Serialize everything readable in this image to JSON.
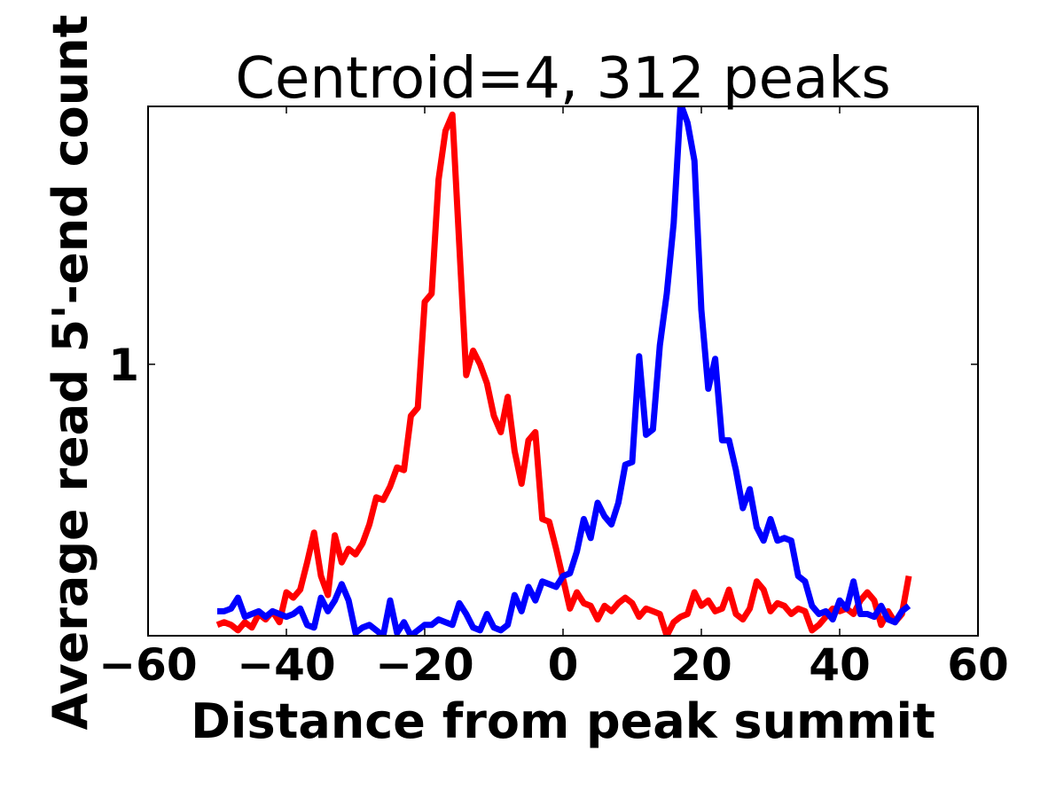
{
  "chart_data": {
    "type": "line",
    "title": "Centroid=4, 312 peaks",
    "xlabel": "Distance from peak summit",
    "ylabel": "Average read 5'-end count",
    "xlim": [
      -60,
      60
    ],
    "xticks": [
      -60,
      -40,
      -20,
      0,
      20,
      40,
      60
    ],
    "xtick_labels": [
      "−60",
      "−40",
      "−20",
      "0",
      "20",
      "40",
      "60"
    ],
    "ylim": [
      0.0,
      1.95
    ],
    "yticks": [
      1
    ],
    "ytick_labels": [
      "1"
    ],
    "grid": false,
    "legend": "none",
    "series": [
      {
        "color": "#ff0000",
        "x": [
          -50,
          -49,
          -48,
          -47,
          -46,
          -45,
          -44,
          -43,
          -42,
          -41,
          -40,
          -39,
          -38,
          -37,
          -36,
          -35,
          -34,
          -33,
          -32,
          -31,
          -30,
          -29,
          -28,
          -27,
          -26,
          -25,
          -24,
          -23,
          -22,
          -21,
          -20,
          -19,
          -18,
          -17,
          -16,
          -15,
          -14,
          -13,
          -12,
          -11,
          -10,
          -9,
          -8,
          -7,
          -6,
          -5,
          -4,
          -3,
          -2,
          -1,
          0,
          1,
          2,
          3,
          4,
          5,
          6,
          7,
          8,
          9,
          10,
          11,
          12,
          13,
          14,
          15,
          16,
          17,
          18,
          19,
          20,
          21,
          22,
          23,
          24,
          25,
          26,
          27,
          28,
          29,
          30,
          31,
          32,
          33,
          34,
          35,
          36,
          37,
          38,
          39,
          40,
          41,
          42,
          43,
          44,
          45,
          46,
          47,
          48,
          49,
          50
        ],
        "y": [
          0.04,
          0.05,
          0.04,
          0.02,
          0.05,
          0.03,
          0.08,
          0.06,
          0.09,
          0.05,
          0.16,
          0.14,
          0.17,
          0.27,
          0.38,
          0.22,
          0.15,
          0.37,
          0.27,
          0.32,
          0.3,
          0.34,
          0.41,
          0.51,
          0.5,
          0.55,
          0.62,
          0.61,
          0.81,
          0.84,
          1.23,
          1.26,
          1.68,
          1.86,
          1.92,
          1.44,
          0.96,
          1.05,
          1.0,
          0.93,
          0.81,
          0.75,
          0.88,
          0.68,
          0.56,
          0.72,
          0.75,
          0.43,
          0.42,
          0.32,
          0.21,
          0.1,
          0.16,
          0.12,
          0.11,
          0.06,
          0.11,
          0.09,
          0.12,
          0.14,
          0.12,
          0.07,
          0.1,
          0.09,
          0.08,
          0.0,
          0.05,
          0.07,
          0.08,
          0.16,
          0.11,
          0.13,
          0.09,
          0.1,
          0.17,
          0.08,
          0.06,
          0.1,
          0.2,
          0.17,
          0.09,
          0.12,
          0.11,
          0.08,
          0.1,
          0.09,
          0.02,
          0.04,
          0.07,
          0.1,
          0.09,
          0.1,
          0.08,
          0.13,
          0.16,
          0.13,
          0.04,
          0.09,
          0.05,
          0.08,
          0.22
        ]
      },
      {
        "color": "#0000ff",
        "x": [
          -50,
          -49,
          -48,
          -47,
          -46,
          -45,
          -44,
          -43,
          -42,
          -41,
          -40,
          -39,
          -38,
          -37,
          -36,
          -35,
          -34,
          -33,
          -32,
          -31,
          -30,
          -29,
          -28,
          -27,
          -26,
          -25,
          -24,
          -23,
          -22,
          -21,
          -20,
          -19,
          -18,
          -17,
          -16,
          -15,
          -14,
          -13,
          -12,
          -11,
          -10,
          -9,
          -8,
          -7,
          -6,
          -5,
          -4,
          -3,
          -2,
          -1,
          0,
          1,
          2,
          3,
          4,
          5,
          6,
          7,
          8,
          9,
          10,
          11,
          12,
          13,
          14,
          15,
          16,
          17,
          18,
          19,
          20,
          21,
          22,
          23,
          24,
          25,
          26,
          27,
          28,
          29,
          30,
          31,
          32,
          33,
          34,
          35,
          36,
          37,
          38,
          39,
          40,
          41,
          42,
          43,
          44,
          45,
          46,
          47,
          48,
          49,
          50
        ],
        "y": [
          0.09,
          0.09,
          0.1,
          0.14,
          0.07,
          0.08,
          0.09,
          0.07,
          0.09,
          0.08,
          0.07,
          0.08,
          0.1,
          0.04,
          0.03,
          0.14,
          0.09,
          0.13,
          0.19,
          0.13,
          0.01,
          0.03,
          0.04,
          0.02,
          0.0,
          0.13,
          0.01,
          0.05,
          0.0,
          0.02,
          0.04,
          0.04,
          0.06,
          0.05,
          0.04,
          0.12,
          0.08,
          0.03,
          0.02,
          0.08,
          0.03,
          0.02,
          0.04,
          0.15,
          0.09,
          0.18,
          0.13,
          0.2,
          0.19,
          0.18,
          0.22,
          0.23,
          0.31,
          0.43,
          0.36,
          0.49,
          0.44,
          0.41,
          0.49,
          0.63,
          0.64,
          1.03,
          0.74,
          0.76,
          1.07,
          1.26,
          1.52,
          1.96,
          1.89,
          1.75,
          1.2,
          0.91,
          1.02,
          0.72,
          0.72,
          0.61,
          0.47,
          0.54,
          0.4,
          0.35,
          0.43,
          0.35,
          0.36,
          0.35,
          0.22,
          0.2,
          0.11,
          0.08,
          0.09,
          0.06,
          0.13,
          0.1,
          0.2,
          0.08,
          0.08,
          0.07,
          0.11,
          0.06,
          0.05,
          0.09,
          0.11
        ]
      }
    ]
  }
}
